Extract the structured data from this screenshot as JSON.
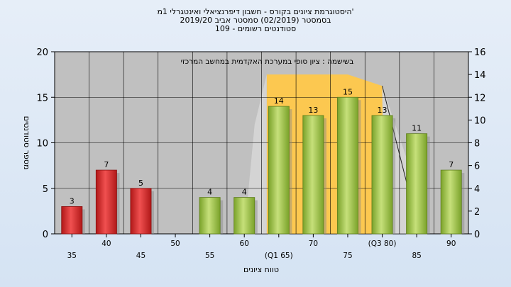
{
  "title": {
    "line1": "היסטוגרמת ציונים בקורס - חשבון דיפרנציאלי ואינטגרלי 1מ'",
    "line2": "בסמסטר  (02/2019)  סמסטר אביב 2019/20",
    "line3": "סטודנטים רשומים - 109"
  },
  "chart_data": {
    "type": "bar",
    "categories": [
      "35",
      "40",
      "45",
      "50",
      "55",
      "60",
      "(Q1 65)",
      "70",
      "75",
      "(Q3 80)",
      "85",
      "90"
    ],
    "values": [
      3,
      7,
      5,
      0,
      4,
      4,
      14,
      13,
      15,
      13,
      11,
      7
    ],
    "bar_colors": [
      "red",
      "red",
      "red",
      "none",
      "green",
      "green",
      "green",
      "green",
      "green",
      "green",
      "green",
      "green"
    ],
    "xlabel": "טווח ציונים",
    "ylabel": "מספר סטודנטים",
    "ylim": [
      0,
      20
    ],
    "y_ticks": [
      0,
      5,
      10,
      15,
      20
    ],
    "y2lim": [
      0,
      16
    ],
    "y2_ticks": [
      0,
      2,
      4,
      6,
      8,
      10,
      12,
      14,
      16
    ],
    "annotation": "בשישמה : ציון סופי במערכת האקדמית במחשב המרכזי",
    "iqr_band": {
      "from": "(Q1 65)",
      "to": "(Q3 80)",
      "color": "#ffc84a"
    },
    "grid": true,
    "colors": {
      "red": "#d02a2a",
      "green": "#9cc042",
      "plot_bg": "#c0c0c0",
      "grid": "#000000"
    }
  }
}
